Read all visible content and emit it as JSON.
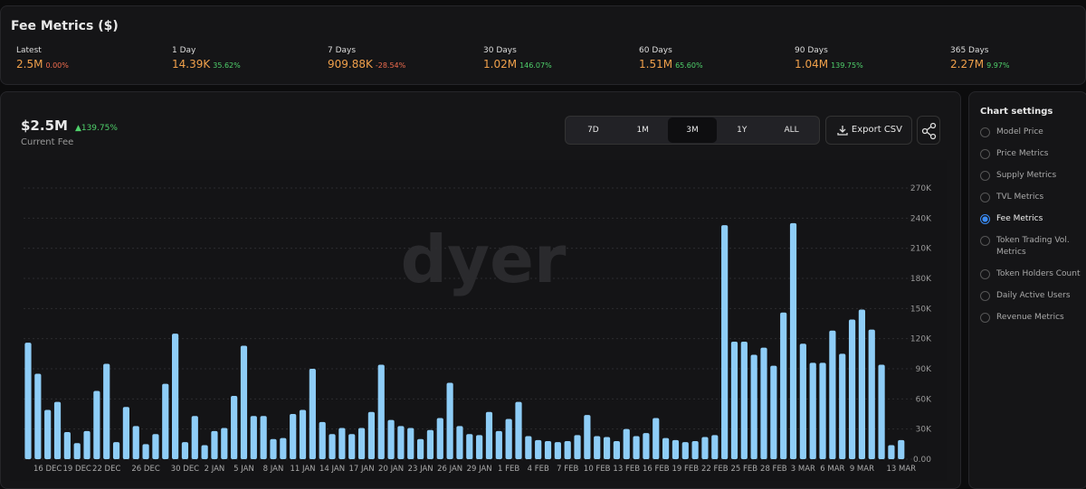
{
  "header": {
    "title": "Fee Metrics ($)"
  },
  "metrics": [
    {
      "label": "Latest",
      "value": "2.5M",
      "change": "0.00%",
      "change_color": "#f26d4f"
    },
    {
      "label": "1 Day",
      "value": "14.39K",
      "change": "35.62%",
      "change_color": "#4fd16b"
    },
    {
      "label": "7 Days",
      "value": "909.88K",
      "change": "-28.54%",
      "change_color": "#f26d4f"
    },
    {
      "label": "30 Days",
      "value": "1.02M",
      "change": "146.07%",
      "change_color": "#4fd16b"
    },
    {
      "label": "60 Days",
      "value": "1.51M",
      "change": "65.60%",
      "change_color": "#4fd16b"
    },
    {
      "label": "90 Days",
      "value": "1.04M",
      "change": "139.75%",
      "change_color": "#4fd16b"
    },
    {
      "label": "365 Days",
      "value": "2.27M",
      "change": "9.97%",
      "change_color": "#4fd16b"
    }
  ],
  "summary": {
    "value": "$2.5M",
    "change": "139.75%",
    "caption": "Current Fee"
  },
  "range_buttons": {
    "options": [
      "7D",
      "1M",
      "3M",
      "1Y",
      "ALL"
    ],
    "active": 2
  },
  "export_button": "Export CSV",
  "settings": {
    "title": "Chart settings",
    "options": [
      "Model Price",
      "Price Metrics",
      "Supply Metrics",
      "TVL Metrics",
      "Fee Metrics",
      "Token Trading Vol. Metrics",
      "Token Holders Count",
      "Daily Active Users",
      "Revenue Metrics"
    ],
    "selected": 4
  },
  "chart_data": {
    "type": "bar",
    "watermark": "dyer",
    "color": "#8ecdf7",
    "grid": true,
    "categories": [
      null,
      null,
      "16 DEC",
      null,
      null,
      "19 DEC",
      null,
      null,
      "22 DEC",
      null,
      null,
      null,
      "26 DEC",
      null,
      null,
      null,
      "30 DEC",
      null,
      null,
      "2 JAN",
      null,
      null,
      "5 JAN",
      null,
      null,
      "8 JAN",
      null,
      null,
      "11 JAN",
      null,
      null,
      "14 JAN",
      null,
      null,
      "17 JAN",
      null,
      null,
      "20 JAN",
      null,
      null,
      "23 JAN",
      null,
      null,
      "26 JAN",
      null,
      null,
      "29 JAN",
      null,
      null,
      "1 FEB",
      null,
      null,
      "4 FEB",
      null,
      null,
      "7 FEB",
      null,
      null,
      "10 FEB",
      null,
      null,
      "13 FEB",
      null,
      null,
      "16 FEB",
      null,
      null,
      "19 FEB",
      null,
      null,
      "22 FEB",
      null,
      null,
      "25 FEB",
      null,
      null,
      "28 FEB",
      null,
      null,
      "3 MAR",
      null,
      null,
      "6 MAR",
      null,
      null,
      "9 MAR",
      null,
      null,
      null,
      "13 MAR"
    ],
    "values": [
      116000,
      85000,
      49000,
      57000,
      27000,
      16000,
      28000,
      68000,
      95000,
      17000,
      52000,
      33000,
      15000,
      25000,
      75000,
      125000,
      17000,
      43000,
      14000,
      28000,
      31000,
      63000,
      113000,
      43000,
      43000,
      20000,
      21000,
      45000,
      49000,
      90000,
      37000,
      25000,
      31000,
      25000,
      31000,
      47000,
      94000,
      39000,
      33000,
      31000,
      20000,
      29000,
      41000,
      76000,
      33000,
      25000,
      24000,
      47000,
      28000,
      40000,
      57000,
      23000,
      19000,
      18000,
      17000,
      18000,
      24000,
      44000,
      23000,
      22000,
      18000,
      30000,
      23000,
      26000,
      41000,
      21000,
      19000,
      17000,
      18000,
      22000,
      24000,
      233000,
      117000,
      117000,
      104000,
      111000,
      93000,
      146000,
      235000,
      115000,
      96000,
      96000,
      128000,
      105000,
      139000,
      149000,
      129000,
      94000,
      14000,
      19000
    ],
    "ylim": [
      0,
      270000
    ],
    "yticks": [
      {
        "value": 0,
        "label": "0.00"
      },
      {
        "value": 30000,
        "label": "30K"
      },
      {
        "value": 60000,
        "label": "60K"
      },
      {
        "value": 90000,
        "label": "90K"
      },
      {
        "value": 120000,
        "label": "120K"
      },
      {
        "value": 150000,
        "label": "150K"
      },
      {
        "value": 180000,
        "label": "180K"
      },
      {
        "value": 210000,
        "label": "210K"
      },
      {
        "value": 240000,
        "label": "240K"
      },
      {
        "value": 270000,
        "label": "270K"
      }
    ]
  }
}
